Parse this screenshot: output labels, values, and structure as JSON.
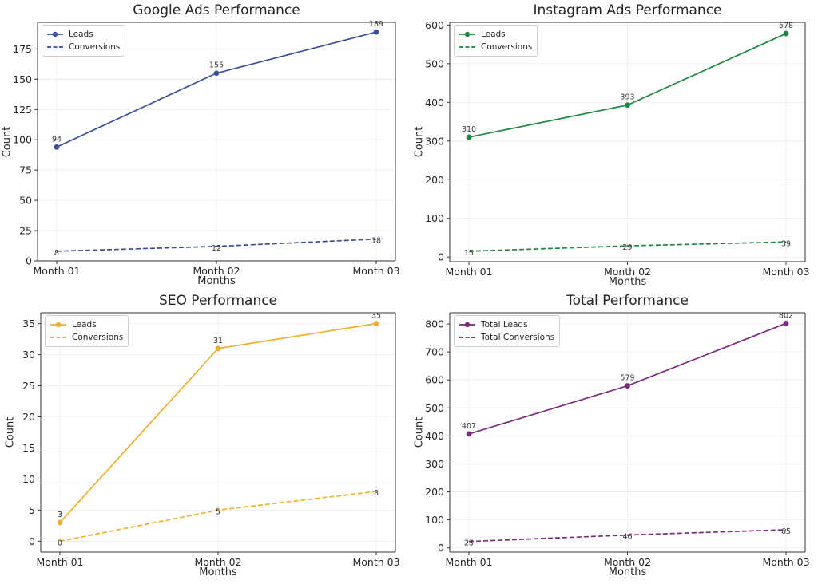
{
  "chart_data": [
    {
      "type": "line",
      "title": "Google Ads Performance",
      "xlabel": "Months",
      "ylabel": "Count",
      "categories": [
        "Month 01",
        "Month 02",
        "Month 03"
      ],
      "ylim": [
        0,
        197
      ],
      "yticks": [
        0,
        25,
        50,
        75,
        100,
        125,
        150,
        175
      ],
      "color": "#3b4f96",
      "legend_position": "top-left",
      "series": [
        {
          "name": "Leads",
          "values": [
            94,
            155,
            189
          ],
          "style": "solid",
          "markers": true
        },
        {
          "name": "Conversions",
          "values": [
            8,
            12,
            18
          ],
          "style": "dashed",
          "markers": false
        }
      ]
    },
    {
      "type": "line",
      "title": "Instagram Ads Performance",
      "xlabel": "Months",
      "ylabel": "Count",
      "categories": [
        "Month 01",
        "Month 02",
        "Month 03"
      ],
      "ylim": [
        -12,
        607
      ],
      "yticks": [
        0,
        100,
        200,
        300,
        400,
        500,
        600
      ],
      "color": "#1e8841",
      "legend_position": "top-left",
      "series": [
        {
          "name": "Leads",
          "values": [
            310,
            393,
            578
          ],
          "style": "solid",
          "markers": true
        },
        {
          "name": "Conversions",
          "values": [
            15,
            29,
            39
          ],
          "style": "dashed",
          "markers": false
        }
      ]
    },
    {
      "type": "line",
      "title": "SEO Performance",
      "xlabel": "Months",
      "ylabel": "Count",
      "categories": [
        "Month 01",
        "Month 02",
        "Month 03"
      ],
      "ylim": [
        -1.75,
        36.75
      ],
      "yticks": [
        0,
        5,
        10,
        15,
        20,
        25,
        30,
        35
      ],
      "color": "#eeb02e",
      "legend_position": "top-left",
      "series": [
        {
          "name": "Leads",
          "values": [
            3,
            31,
            35
          ],
          "style": "solid",
          "markers": true
        },
        {
          "name": "Conversions",
          "values": [
            0,
            5,
            8
          ],
          "style": "dashed",
          "markers": false
        }
      ]
    },
    {
      "type": "line",
      "title": "Total Performance",
      "xlabel": "Months",
      "ylabel": "Count",
      "categories": [
        "Month 01",
        "Month 02",
        "Month 03"
      ],
      "ylim": [
        -15,
        840
      ],
      "yticks": [
        0,
        100,
        200,
        300,
        400,
        500,
        600,
        700,
        800
      ],
      "color": "#7b2a7e",
      "legend_position": "top-left",
      "series": [
        {
          "name": "Total Leads",
          "values": [
            407,
            579,
            802
          ],
          "style": "solid",
          "markers": true
        },
        {
          "name": "Total Conversions",
          "values": [
            23,
            46,
            65
          ],
          "style": "dashed",
          "markers": false
        }
      ]
    }
  ]
}
